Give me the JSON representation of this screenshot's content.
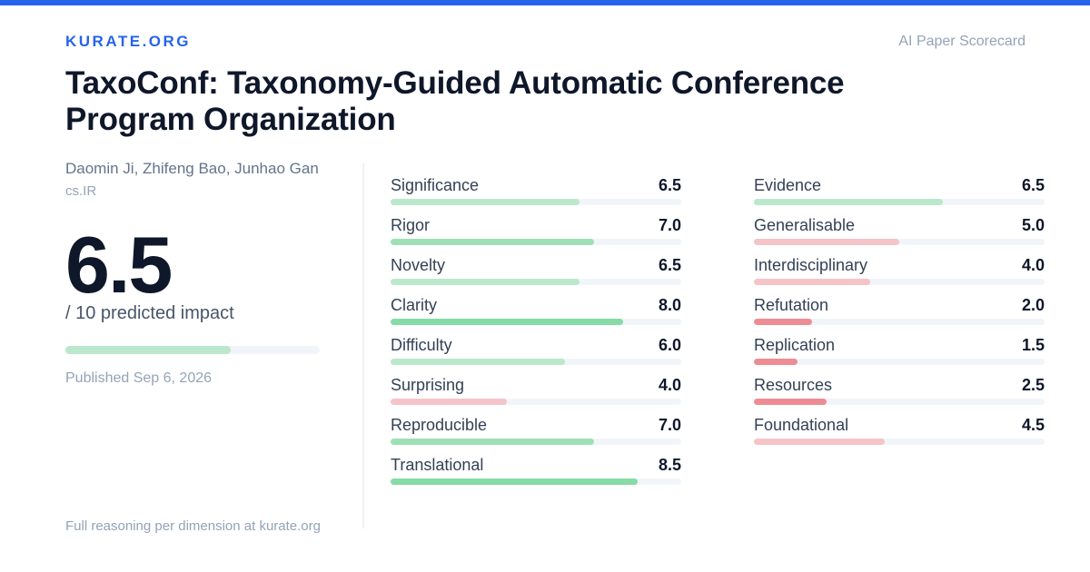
{
  "brand": "KURATE.ORG",
  "scorecard_label": "AI Paper Scorecard",
  "paper": {
    "title": "TaxoConf: Taxonomy-Guided Automatic Conference Program Organization",
    "authors": "Daomin Ji, Zhifeng Bao, Junhao Gan",
    "category": "cs.IR"
  },
  "score": {
    "value": "6.5",
    "numeric": 6.5,
    "max": 10,
    "caption": "/ 10 predicted impact"
  },
  "published": "Published Sep 6, 2026",
  "footer_note": "Full reasoning per dimension at kurate.org",
  "colors": {
    "accent": "#2563eb",
    "bar_high": "#86dba6",
    "bar_mid": "#bbe8cc",
    "bar_low": "#f4c4c8",
    "bar_very_low": "#ee8c93",
    "track": "#f1f5f9"
  },
  "dimensions_left": [
    {
      "label": "Significance",
      "value": "6.5",
      "score": 6.5
    },
    {
      "label": "Rigor",
      "value": "7.0",
      "score": 7.0
    },
    {
      "label": "Novelty",
      "value": "6.5",
      "score": 6.5
    },
    {
      "label": "Clarity",
      "value": "8.0",
      "score": 8.0
    },
    {
      "label": "Difficulty",
      "value": "6.0",
      "score": 6.0
    },
    {
      "label": "Surprising",
      "value": "4.0",
      "score": 4.0
    },
    {
      "label": "Reproducible",
      "value": "7.0",
      "score": 7.0
    },
    {
      "label": "Translational",
      "value": "8.5",
      "score": 8.5
    }
  ],
  "dimensions_right": [
    {
      "label": "Evidence",
      "value": "6.5",
      "score": 6.5
    },
    {
      "label": "Generalisable",
      "value": "5.0",
      "score": 5.0
    },
    {
      "label": "Interdisciplinary",
      "value": "4.0",
      "score": 4.0
    },
    {
      "label": "Refutation",
      "value": "2.0",
      "score": 2.0
    },
    {
      "label": "Replication",
      "value": "1.5",
      "score": 1.5
    },
    {
      "label": "Resources",
      "value": "2.5",
      "score": 2.5
    },
    {
      "label": "Foundational",
      "value": "4.5",
      "score": 4.5
    }
  ]
}
